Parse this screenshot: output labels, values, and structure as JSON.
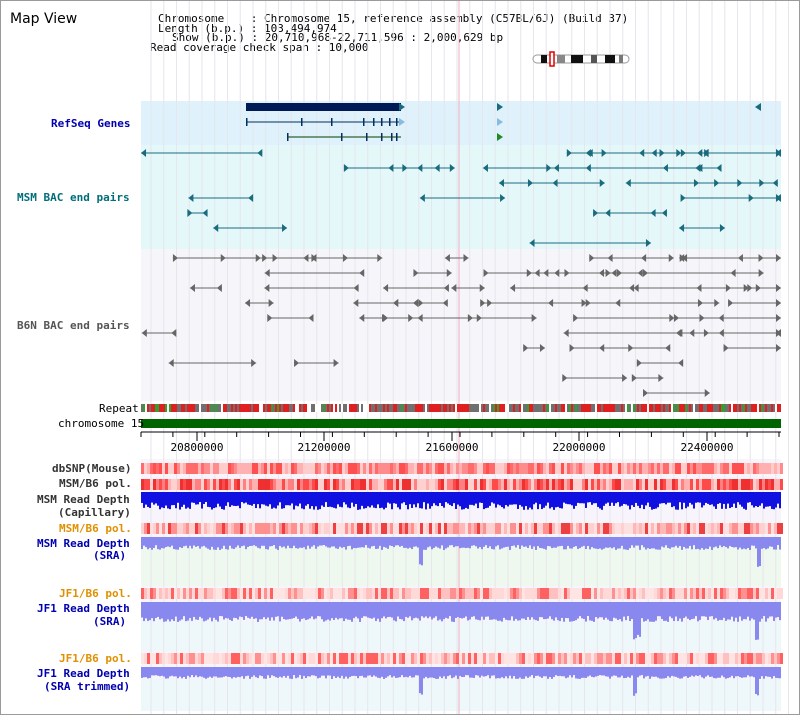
{
  "page": {
    "title": "Map View"
  },
  "info": {
    "chromosome_line": "Chromosome    : Chromosome 15, reference assembly (C57BL/6J) (Build 37)",
    "length_line": "Length (b.p.) : 103,494,974",
    "show_line": "Show (b.p.) : 20,710,968-22,711,596 : 2,000,629 bp",
    "coverage_line": "Read coverage check span : 10,000"
  },
  "tracks": {
    "refseq": "RefSeq Genes",
    "msm_bac": "MSM BAC end pairs",
    "b6n_bac": "B6N BAC end pairs",
    "repeat": "Repeat",
    "chromosome": "chromosome 15",
    "dbsnp": "dbSNP(Mouse)",
    "msm_b6_pol_1": "MSM/B6 pol.",
    "msm_depth_cap_1": "MSM Read Depth",
    "msm_depth_cap_2": "(Capillary)",
    "msm_b6_pol_2": "MSM/B6 pol.",
    "msm_depth_sra_1": "MSM Read Depth",
    "msm_depth_sra_2": "(SRA)",
    "jf1_b6_pol_1": "JF1/B6 pol.",
    "jf1_depth_sra_1": "JF1 Read Depth",
    "jf1_depth_sra_2": "(SRA)",
    "jf1_b6_pol_2": "JF1/B6 pol.",
    "jf1_depth_trim_1": "JF1 Read Depth",
    "jf1_depth_trim_2": "(SRA trimmed)"
  },
  "axis": {
    "ticks": [
      "20800000",
      "21200000",
      "21600000",
      "22000000",
      "22400000"
    ]
  },
  "colors": {
    "refseq_bg": "#dff1fb",
    "msm_bg": "#e4f8fa",
    "b6n_bg": "#f5f5fa",
    "gene_dark": "#001a55",
    "teal": "#1a6b7d",
    "chrom_green": "#006400",
    "depth_blue": "#1010e0",
    "depth_light": "#8888ee"
  }
}
